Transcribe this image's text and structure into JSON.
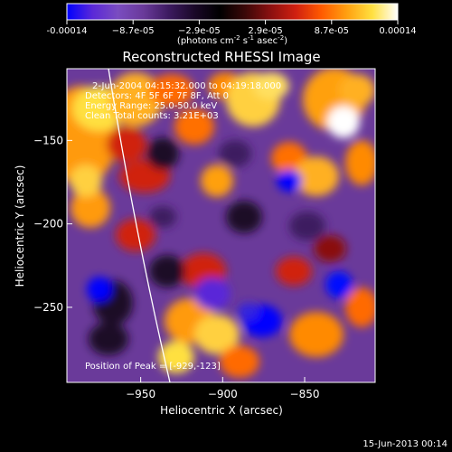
{
  "colorbar": {
    "tick_labels": [
      "-0.00014",
      "−8.7e-05",
      "−2.9e-05",
      "2.9e-05",
      "8.7e-05",
      "0.00014"
    ],
    "units_prefix": "(photons cm",
    "units_exp1": "-2",
    "units_mid": " s",
    "units_exp2": "-1",
    "units_mid2": " asec",
    "units_exp3": "-2",
    "units_suffix": ")",
    "colors": [
      "#0000ff",
      "#5a28d8",
      "#7a4cc0",
      "#6a3a9a",
      "#3c1a60",
      "#1a0828",
      "#000000",
      "#3a0808",
      "#8a1010",
      "#d02010",
      "#ff5a00",
      "#ffa010",
      "#ffe040",
      "#ffffff"
    ]
  },
  "image": {
    "title": "Reconstructed RHESSI Image",
    "info_lines": [
      "2-Jun-2004 04:15:32.000 to 04:19:18.000",
      "Detectors: 4F 5F 6F 7F 8F, Att 0",
      "Energy Range: 25.0-50.0 keV",
      "Clean  Total counts: 3.21E+03"
    ],
    "peak_label": "Position of Peak = [-929,-123]",
    "xlabel": "Heliocentric X (arcsec)",
    "ylabel": "Heliocentric Y (arcsec)",
    "x_ticks": [
      "−950",
      "−900",
      "−850"
    ],
    "y_ticks": [
      "−150",
      "−200",
      "−250"
    ],
    "x_tick_values": [
      -950,
      -900,
      -850
    ],
    "y_tick_values": [
      -150,
      -200,
      -250
    ],
    "xlim": [
      -995,
      -807
    ],
    "ylim": [
      -295,
      -107
    ]
  },
  "footer": {
    "date": "15-Jun-2013 00:14"
  }
}
